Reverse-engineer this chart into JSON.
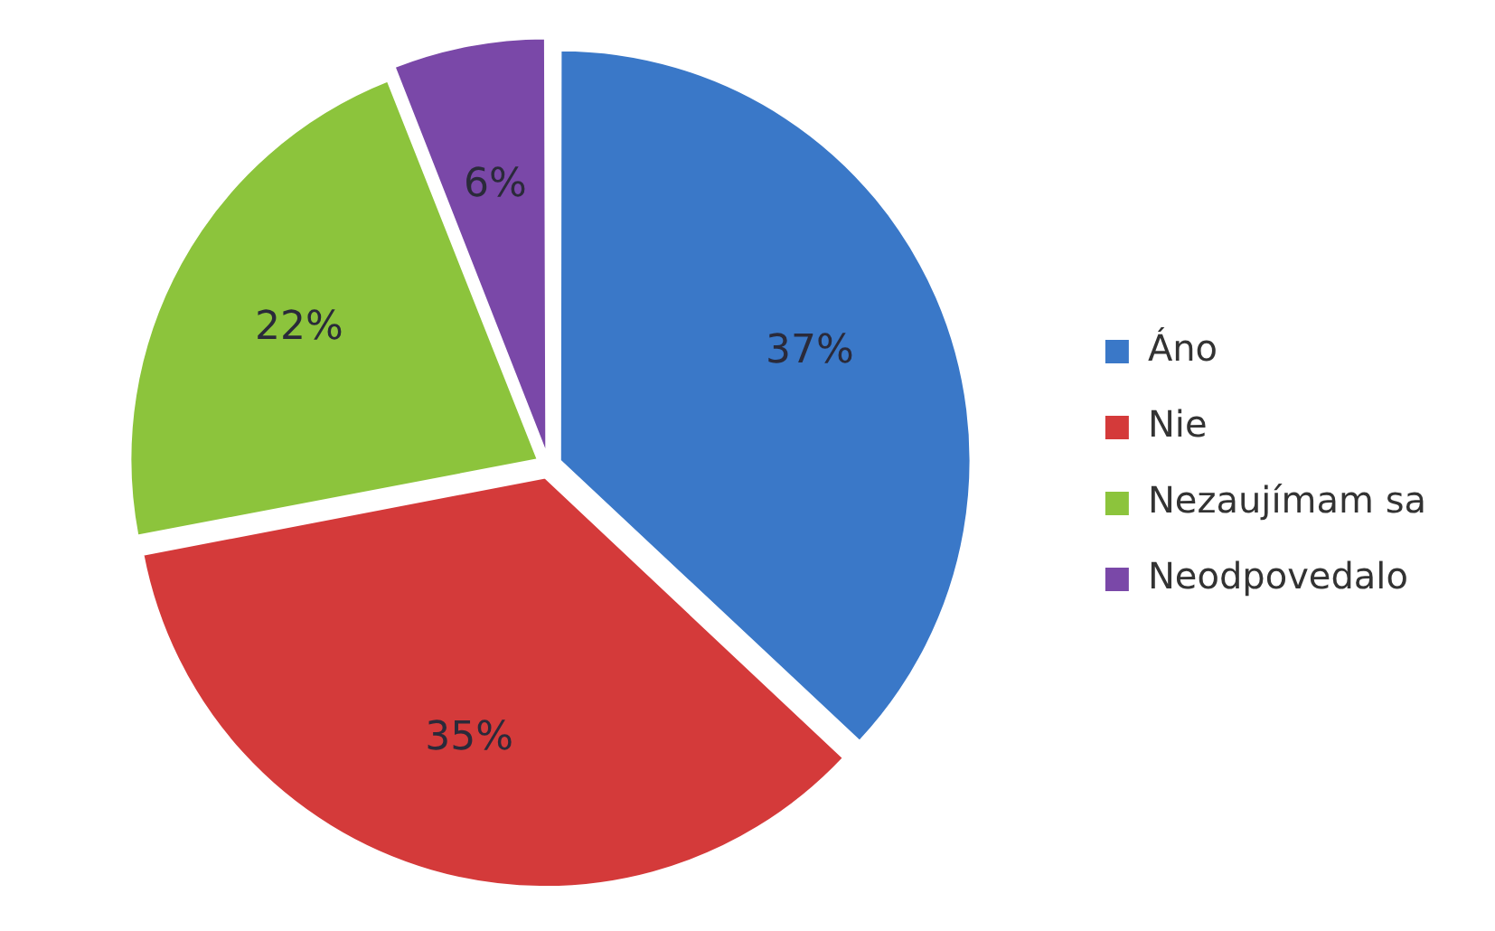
{
  "chart_data": {
    "type": "pie",
    "categories": [
      "Áno",
      "Nie",
      "Nezaujímam sa",
      "Neodpovedalo"
    ],
    "values": [
      37,
      35,
      22,
      6
    ],
    "colors": [
      "#3a78c8",
      "#d43a3a",
      "#8cc43c",
      "#7a48a8"
    ],
    "value_labels": [
      "37%",
      "35%",
      "22%",
      "6%"
    ],
    "legend": "right"
  }
}
